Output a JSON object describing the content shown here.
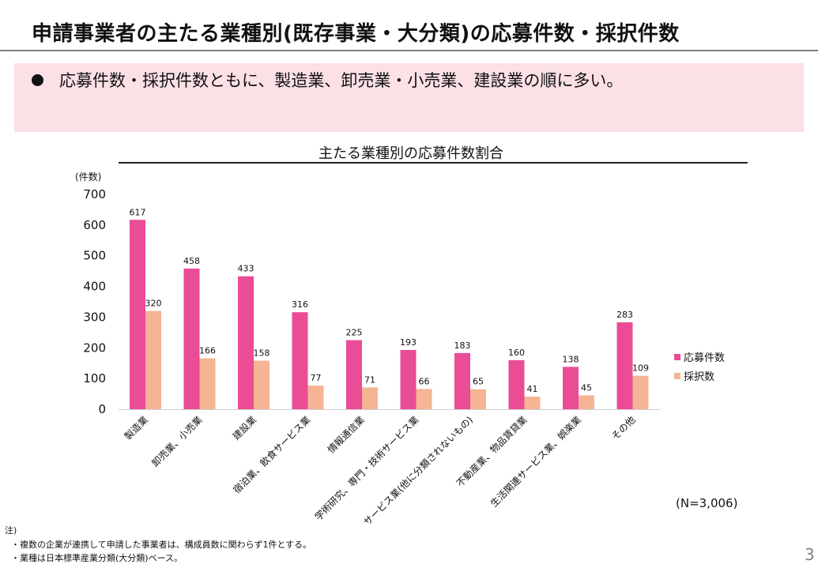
{
  "slide": {
    "title": "申請事業者の主たる業種別(既存事業・大分類)の応募件数・採択件数",
    "summary": "応募件数・採択件数ともに、製造業、卸売業・小売業、建設業の順に多い。",
    "n_label": "(N=3,006)",
    "notes": {
      "heading": "注)",
      "items": [
        "・複数の企業が連携して申請した事業者は、構成員数に関わらず1件とする。",
        "・業種は日本標準産業分類(大分類)ベース。"
      ]
    },
    "page_number": "3"
  },
  "colors": {
    "applications": "#ea4c96",
    "adopted": "#f5b494",
    "summary_bg": "#fbe0e6"
  },
  "chart_data": {
    "type": "bar",
    "title": "主たる業種別の応募件数割合",
    "ylabel": "(件数)",
    "xlabel": "",
    "ylim": [
      0,
      700
    ],
    "yticks": [
      0,
      100,
      200,
      300,
      400,
      500,
      600,
      700
    ],
    "categories": [
      "製造業",
      "卸売業、小売業",
      "建設業",
      "宿泊業、飲食サービス業",
      "情報通信業",
      "学術研究、専門・技術サービス業",
      "サービス業(他に分類されないもの)",
      "不動産業、物品賃貸業",
      "生活関連サービス業、娯楽業",
      "その他"
    ],
    "series": [
      {
        "name": "応募件数",
        "values": [
          617,
          458,
          433,
          316,
          225,
          193,
          183,
          160,
          138,
          283
        ]
      },
      {
        "name": "採択数",
        "values": [
          320,
          166,
          158,
          77,
          71,
          66,
          65,
          41,
          45,
          109
        ]
      }
    ],
    "legend": "right",
    "grid": false
  }
}
